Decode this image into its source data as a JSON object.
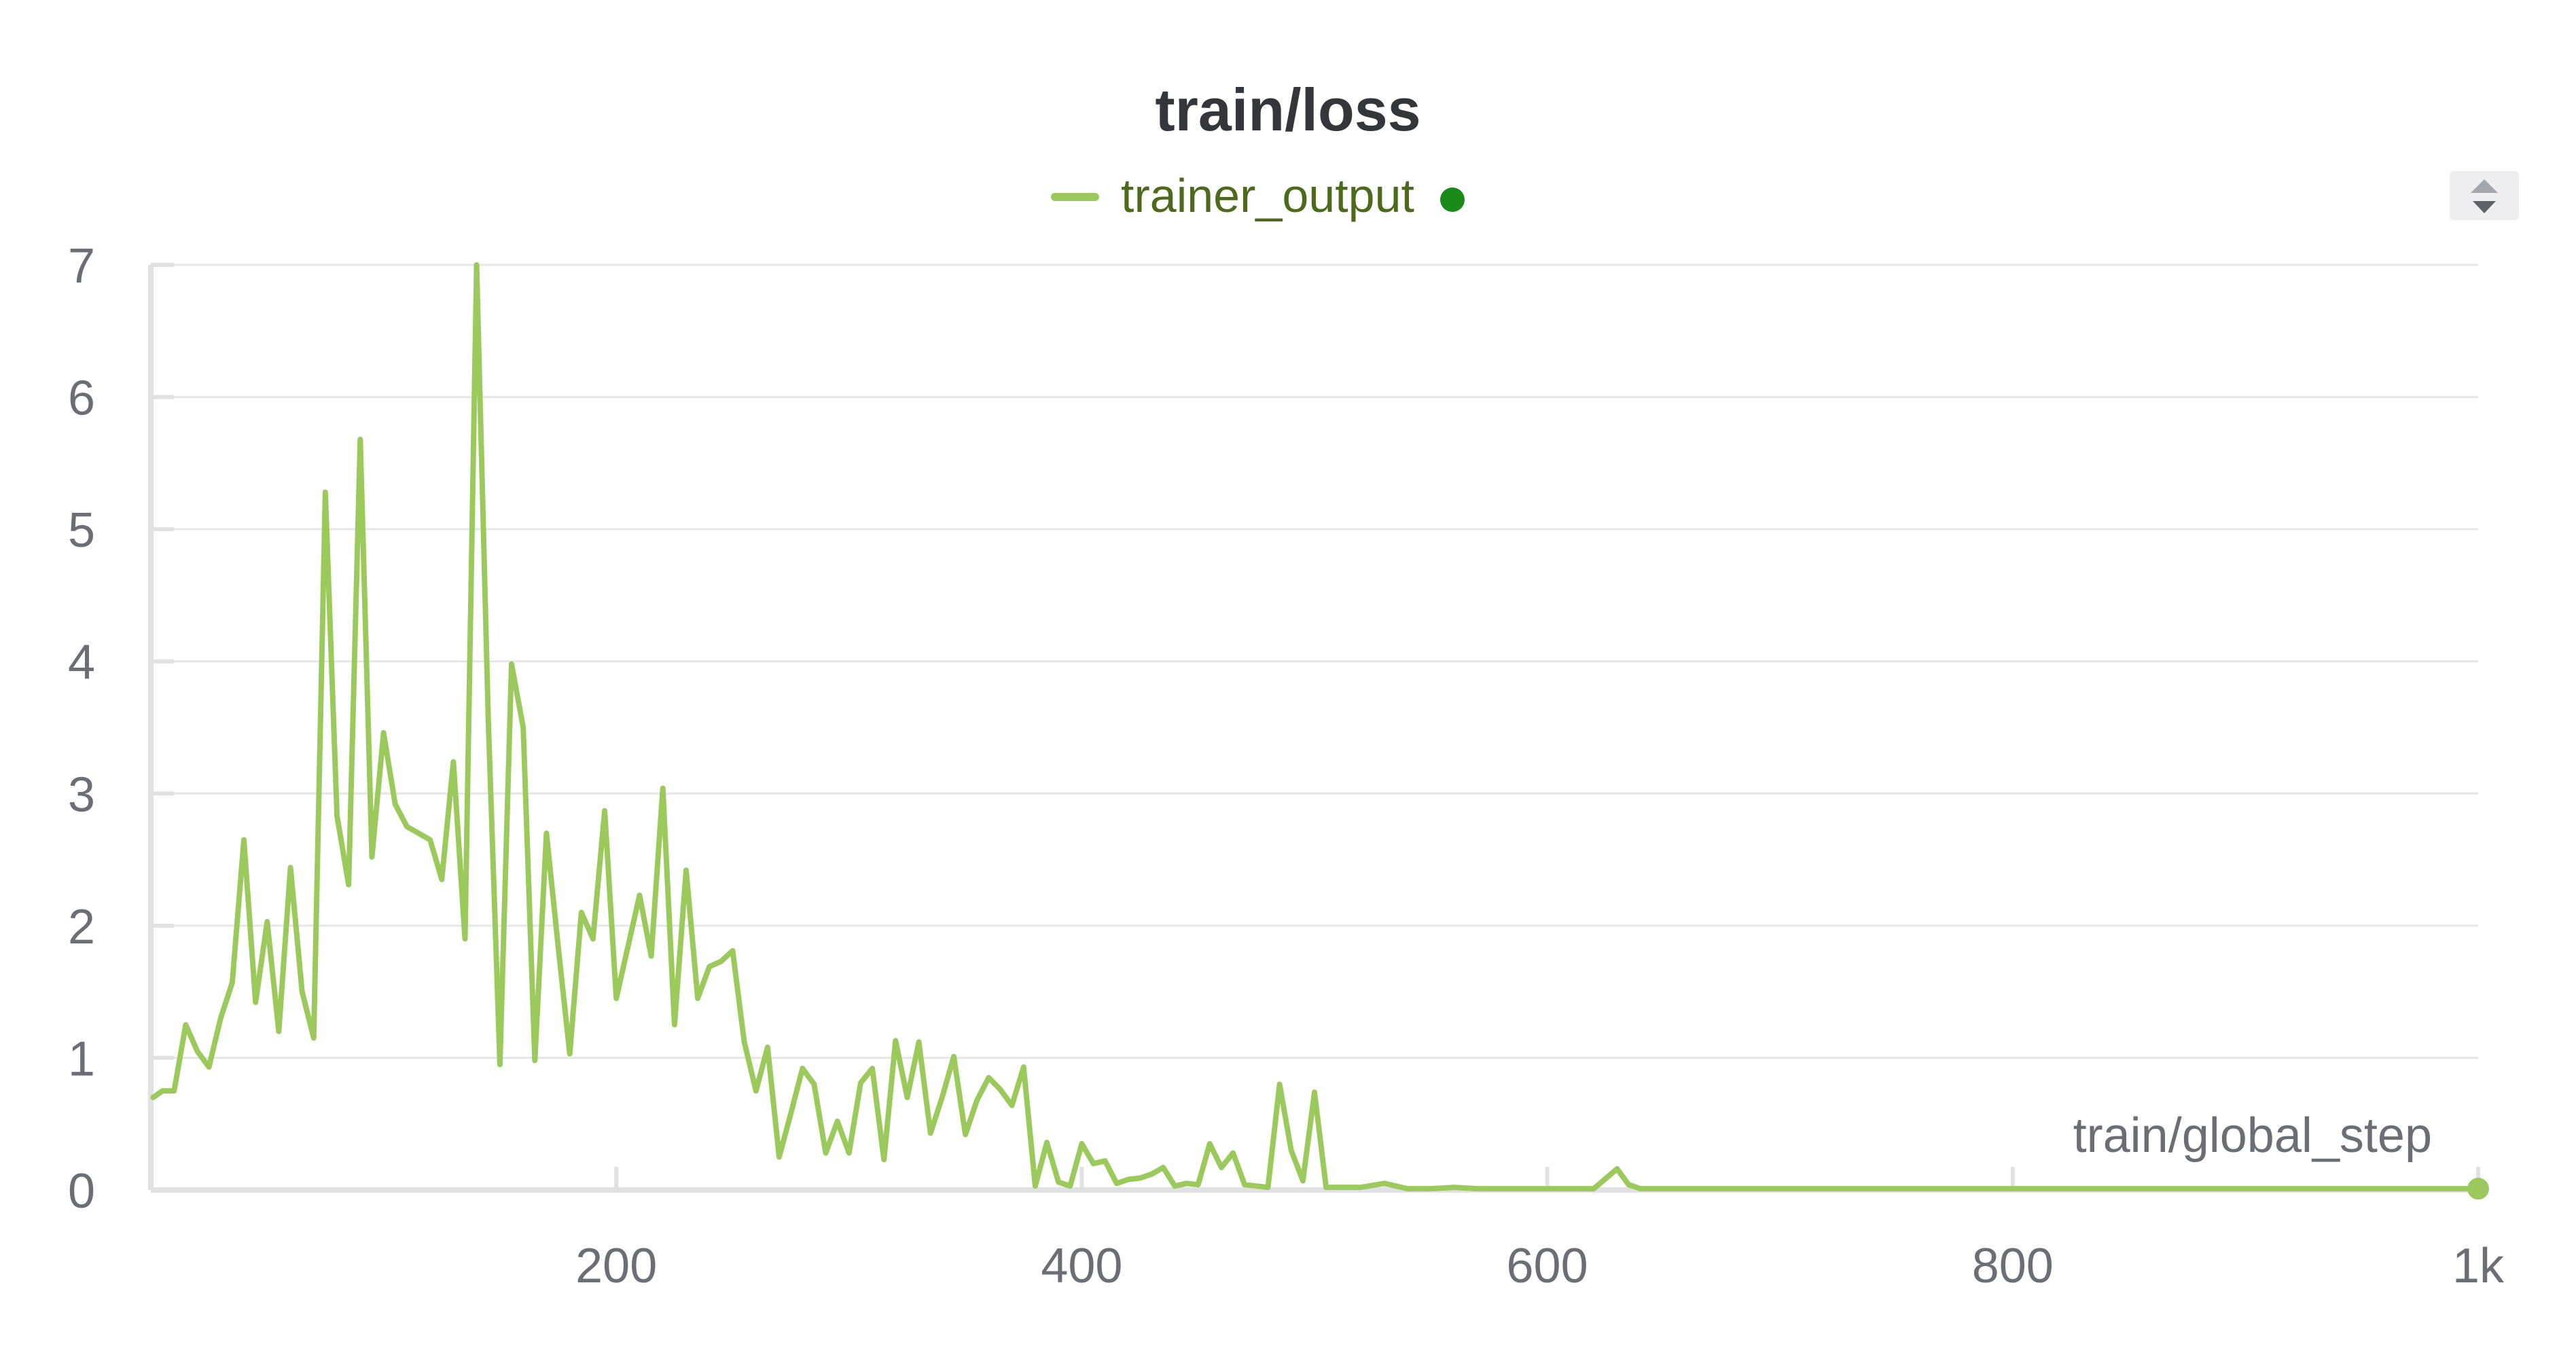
{
  "chart_data": {
    "type": "line",
    "title": "train/loss",
    "xlabel": "train/global_step",
    "ylabel": "",
    "xlim": [
      0,
      1000
    ],
    "ylim": [
      0,
      7
    ],
    "x_ticks": [
      {
        "value": 200,
        "label": "200"
      },
      {
        "value": 400,
        "label": "400"
      },
      {
        "value": 600,
        "label": "600"
      },
      {
        "value": 800,
        "label": "800"
      },
      {
        "value": 1000,
        "label": "1k"
      }
    ],
    "y_ticks": [
      {
        "value": 0,
        "label": "0"
      },
      {
        "value": 1,
        "label": "1"
      },
      {
        "value": 2,
        "label": "2"
      },
      {
        "value": 3,
        "label": "3"
      },
      {
        "value": 4,
        "label": "4"
      },
      {
        "value": 5,
        "label": "5"
      },
      {
        "value": 6,
        "label": "6"
      },
      {
        "value": 7,
        "label": "7"
      }
    ],
    "grid": true,
    "legend_position": "top-center",
    "series": [
      {
        "name": "trainer_output",
        "color": "#9cc95c",
        "status_color": "#1a8a1a",
        "x": [
          1,
          5,
          10,
          15,
          20,
          25,
          30,
          35,
          40,
          45,
          50,
          55,
          60,
          65,
          70,
          75,
          80,
          85,
          90,
          95,
          100,
          105,
          110,
          115,
          120,
          125,
          130,
          135,
          140,
          145,
          150,
          155,
          160,
          165,
          170,
          175,
          180,
          185,
          190,
          195,
          200,
          205,
          210,
          215,
          220,
          225,
          230,
          235,
          240,
          245,
          250,
          255,
          260,
          265,
          270,
          275,
          280,
          285,
          290,
          295,
          300,
          305,
          310,
          315,
          320,
          325,
          330,
          335,
          340,
          345,
          350,
          355,
          360,
          365,
          370,
          375,
          380,
          385,
          390,
          395,
          400,
          405,
          410,
          415,
          420,
          425,
          430,
          435,
          440,
          445,
          450,
          455,
          460,
          465,
          470,
          475,
          480,
          485,
          490,
          495,
          500,
          505,
          510,
          520,
          530,
          540,
          550,
          560,
          570,
          580,
          590,
          600,
          610,
          620,
          630,
          635,
          640,
          660,
          680,
          700,
          720,
          740,
          760,
          780,
          800,
          820,
          840,
          860,
          880,
          900,
          920,
          940,
          960,
          980,
          1000
        ],
        "values": [
          0.7,
          0.75,
          0.75,
          1.25,
          1.05,
          0.93,
          1.3,
          1.57,
          2.65,
          1.42,
          2.03,
          1.2,
          2.44,
          1.5,
          1.15,
          5.28,
          2.83,
          2.31,
          5.68,
          2.52,
          3.46,
          2.92,
          2.75,
          2.7,
          2.65,
          2.35,
          3.24,
          1.9,
          7.0,
          3.55,
          0.95,
          3.98,
          3.5,
          0.98,
          2.7,
          1.85,
          1.03,
          2.1,
          1.9,
          2.87,
          1.45,
          1.84,
          2.23,
          1.77,
          3.04,
          1.25,
          2.42,
          1.45,
          1.69,
          1.73,
          1.81,
          1.12,
          0.75,
          1.08,
          0.25,
          0.58,
          0.92,
          0.8,
          0.28,
          0.52,
          0.28,
          0.81,
          0.92,
          0.23,
          1.13,
          0.7,
          1.12,
          0.43,
          0.7,
          1.01,
          0.42,
          0.68,
          0.85,
          0.76,
          0.64,
          0.93,
          0.03,
          0.36,
          0.06,
          0.03,
          0.35,
          0.2,
          0.22,
          0.05,
          0.08,
          0.09,
          0.12,
          0.17,
          0.03,
          0.05,
          0.04,
          0.35,
          0.17,
          0.28,
          0.04,
          0.03,
          0.02,
          0.8,
          0.3,
          0.07,
          0.74,
          0.02,
          0.02,
          0.02,
          0.05,
          0.01,
          0.01,
          0.02,
          0.01,
          0.01,
          0.01,
          0.01,
          0.01,
          0.01,
          0.16,
          0.04,
          0.01,
          0.01,
          0.01,
          0.01,
          0.01,
          0.01,
          0.01,
          0.01,
          0.01,
          0.01,
          0.01,
          0.01,
          0.01,
          0.01,
          0.01,
          0.01,
          0.01,
          0.01,
          0.01
        ]
      }
    ]
  }
}
